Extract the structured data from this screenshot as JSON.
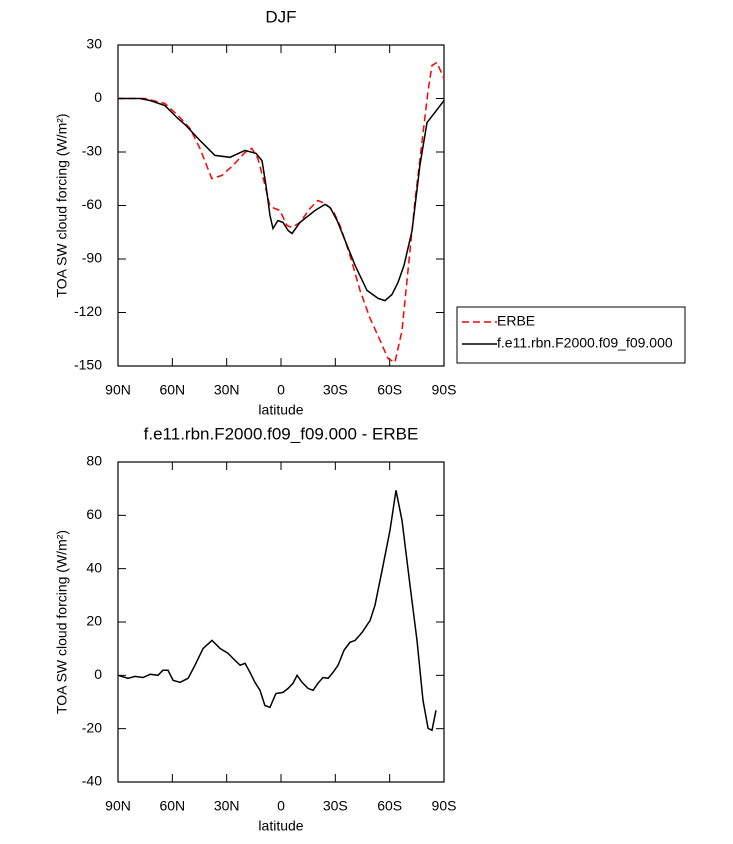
{
  "chart_data": [
    {
      "type": "line",
      "title": "DJF",
      "xlabel": "latitude",
      "ylabel": "TOA SW cloud forcing (W/m²)",
      "xlim": [
        90,
        -90
      ],
      "xticks": [
        {
          "value": 90,
          "label": "90N"
        },
        {
          "value": 60,
          "label": "60N"
        },
        {
          "value": 30,
          "label": "30N"
        },
        0,
        {
          "value": -30,
          "label": "30S"
        },
        {
          "value": -60,
          "label": "60S"
        },
        {
          "value": -90,
          "label": "90S"
        }
      ],
      "ylim": [
        -150,
        30
      ],
      "yticks": [
        -150,
        -120,
        -90,
        -60,
        -30,
        0,
        30
      ],
      "legend": "right",
      "series": [
        {
          "name": "ERBE",
          "color": "#ff0000",
          "dashed": true,
          "x": [
            90,
            75.1,
            64.1,
            56.9,
            50.2,
            44.8,
            38.2,
            32.7,
            26.6,
            19.9,
            16.1,
            12.8,
            9.5,
            6.1,
            3.4,
            0.6,
            -3.3,
            -6.1,
            -10.5,
            -16,
            -20.4,
            -24.3,
            -28.7,
            -32.6,
            -38.1,
            -43.6,
            -49.2,
            -54.7,
            -59.1,
            -62.9,
            -66.8,
            -70.1,
            -74,
            -77.3,
            -81.2,
            -83.4,
            -86.1,
            -90
          ],
          "values": [
            0,
            0,
            -2.8,
            -9.5,
            -16.8,
            -28,
            -44.9,
            -43.2,
            -37.6,
            -30.3,
            -28,
            -33.6,
            -45.9,
            -60.5,
            -61.7,
            -62.8,
            -71.2,
            -72.3,
            -69.5,
            -61.7,
            -57.2,
            -58.9,
            -62.8,
            -71.2,
            -88,
            -107.6,
            -123.3,
            -135.7,
            -145.8,
            -148,
            -130.1,
            -96.5,
            -57.2,
            -29.1,
            4.5,
            18.5,
            20.2,
            11.2
          ]
        },
        {
          "name": "f.e11.rbn.F2000.f09_f09.000",
          "color": "#000000",
          "dashed": false,
          "x": [
            90,
            77.9,
            72.3,
            64.1,
            56.9,
            53,
            44.8,
            36.5,
            28.2,
            19.9,
            13.8,
            10.5,
            8.3,
            6.1,
            4.4,
            1.7,
            -1.1,
            -3.9,
            -6.1,
            -10.5,
            -18.8,
            -24.3,
            -27.1,
            -31,
            -35.4,
            -40.9,
            -47.5,
            -53.6,
            -57.4,
            -61.3,
            -64.6,
            -67.9,
            -72.4,
            -76.7,
            -80.6,
            -85,
            -90
          ],
          "values": [
            0,
            0,
            -1.1,
            -3.9,
            -11.2,
            -14.6,
            -23.5,
            -31.9,
            -33,
            -29.1,
            -30.8,
            -34.8,
            -48.8,
            -65.6,
            -72.9,
            -68.4,
            -69.5,
            -74,
            -75.7,
            -69.5,
            -62.8,
            -59.4,
            -61.1,
            -68.4,
            -79.6,
            -93.6,
            -107.6,
            -112.1,
            -113.3,
            -109.9,
            -103.2,
            -93.6,
            -74,
            -37.5,
            -13.5,
            -7.8,
            -1.1
          ]
        }
      ]
    },
    {
      "type": "line",
      "title": "f.e11.rbn.F2000.f09_f09.000 - ERBE",
      "xlabel": "latitude",
      "ylabel": "TOA SW cloud forcing (W/m²)",
      "xlim": [
        90,
        -90
      ],
      "xticks": [
        {
          "value": 90,
          "label": "90N"
        },
        {
          "value": 60,
          "label": "60N"
        },
        {
          "value": 30,
          "label": "30N"
        },
        0,
        {
          "value": -30,
          "label": "30S"
        },
        {
          "value": -60,
          "label": "60S"
        },
        {
          "value": -90,
          "label": "90S"
        }
      ],
      "ylim": [
        -40,
        80
      ],
      "yticks": [
        -40,
        -20,
        0,
        20,
        40,
        60,
        80
      ],
      "color": "#000000",
      "x": [
        90,
        84.5,
        80.6,
        76.2,
        72.3,
        67.9,
        65.2,
        62.4,
        59.6,
        55.7,
        51.3,
        47.5,
        43,
        38.1,
        33.7,
        29.3,
        25.4,
        22.6,
        19.9,
        17.1,
        14.4,
        11.6,
        8.9,
        6.1,
        2.8,
        -1.1,
        -3.9,
        -6.6,
        -8.9,
        -11.6,
        -14.9,
        -17.7,
        -20.4,
        -23.2,
        -26,
        -28.7,
        -31.5,
        -34.8,
        -38.1,
        -40.9,
        -44.8,
        -49.2,
        -51.9,
        -55.8,
        -60.2,
        -63.5,
        -66.8,
        -71.2,
        -75.1,
        -78.4,
        -81.2,
        -83.4,
        -85.6
      ],
      "values": [
        0,
        -1.1,
        -0.4,
        -0.8,
        0.4,
        0,
        1.9,
        1.9,
        -1.9,
        -2.6,
        -1.1,
        3.8,
        10.1,
        13.1,
        10.1,
        8.3,
        5.6,
        3.8,
        4.5,
        1.1,
        -2.6,
        -5.6,
        -11.3,
        -12,
        -6.8,
        -6.4,
        -4.9,
        -3,
        0,
        -2.6,
        -4.9,
        -5.6,
        -3,
        -0.8,
        -1.1,
        1.1,
        3.8,
        9.4,
        12.4,
        13.1,
        16.1,
        20.6,
        26.3,
        39.4,
        54.4,
        69.4,
        58.1,
        33.8,
        13.1,
        -9.4,
        -19.9,
        -20.6,
        -13.1
      ]
    }
  ]
}
